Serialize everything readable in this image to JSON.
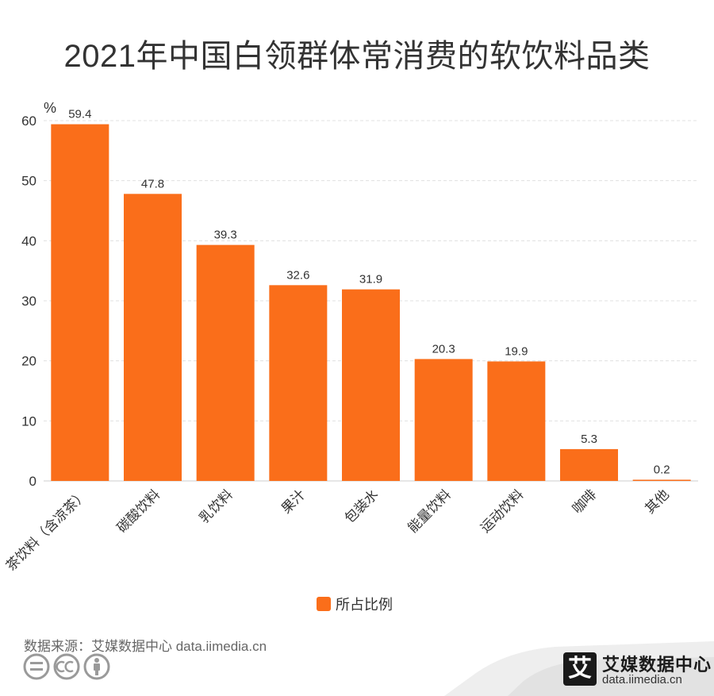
{
  "title": "2021年中国白领群体常消费的软饮料品类",
  "chart_data": {
    "type": "bar",
    "title": "2021年中国白领群体常消费的软饮料品类",
    "ylabel": "%",
    "xlabel": "",
    "ylim": [
      0,
      60
    ],
    "yticks": [
      0,
      10,
      20,
      30,
      40,
      50,
      60
    ],
    "grid": true,
    "legend_position": "bottom",
    "categories": [
      "茶饮料（含凉茶）",
      "碳酸饮料",
      "乳饮料",
      "果汁",
      "包装水",
      "能量饮料",
      "运动饮料",
      "咖啡",
      "其他"
    ],
    "series": [
      {
        "name": "所占比例",
        "color": "#fa6e1a",
        "values": [
          59.4,
          47.8,
          39.3,
          32.6,
          31.9,
          20.3,
          19.9,
          5.3,
          0.2
        ]
      }
    ]
  },
  "legend": {
    "label": "所占比例",
    "color": "#fa6e1a"
  },
  "source": "数据来源：艾媒数据中心 data.iimedia.cn",
  "brand": {
    "logo_char": "艾",
    "name": "艾媒数据中心",
    "url": "data.iimedia.cn"
  }
}
